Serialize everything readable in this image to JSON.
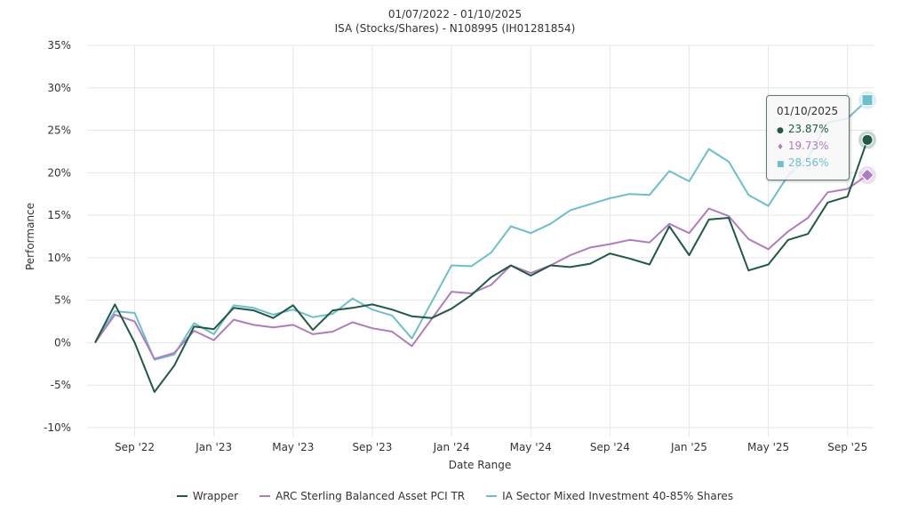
{
  "header": {
    "date_range": "01/07/2022 - 01/10/2025",
    "account": "ISA (Stocks/Shares) - N108995 (IH01281854)"
  },
  "chart_data": {
    "type": "line",
    "title": "01/07/2022 - 01/10/2025",
    "subtitle": "ISA (Stocks/Shares) - N108995 (IH01281854)",
    "xlabel": "Date Range",
    "ylabel": "Performance",
    "ylim": [
      -10,
      35
    ],
    "grid": true,
    "legend_position": "bottom",
    "y_ticks": [
      -10,
      -5,
      0,
      5,
      10,
      15,
      20,
      25,
      30,
      35
    ],
    "y_tick_labels": [
      "-10%",
      "-5%",
      "0%",
      "5%",
      "10%",
      "15%",
      "20%",
      "25%",
      "30%",
      "35%"
    ],
    "x_ticks": [
      {
        "label": "Sep '22",
        "index": 2
      },
      {
        "label": "Jan '23",
        "index": 6
      },
      {
        "label": "May '23",
        "index": 10
      },
      {
        "label": "Sep '23",
        "index": 14
      },
      {
        "label": "Jan '24",
        "index": 18
      },
      {
        "label": "May '24",
        "index": 22
      },
      {
        "label": "Sep '24",
        "index": 26
      },
      {
        "label": "Jan '25",
        "index": 30
      },
      {
        "label": "May '25",
        "index": 34
      },
      {
        "label": "Sep '25",
        "index": 38
      }
    ],
    "x": [
      "Jul 22",
      "Aug 22",
      "Sep 22",
      "Oct 22",
      "Nov 22",
      "Dec 22",
      "Jan 23",
      "Feb 23",
      "Mar 23",
      "Apr 23",
      "May 23",
      "Jun 23",
      "Jul 23",
      "Aug 23",
      "Sep 23",
      "Oct 23",
      "Nov 23",
      "Dec 23",
      "Jan 24",
      "Feb 24",
      "Mar 24",
      "Apr 24",
      "May 24",
      "Jun 24",
      "Jul 24",
      "Aug 24",
      "Sep 24",
      "Oct 24",
      "Nov 24",
      "Dec 24",
      "Jan 25",
      "Feb 25",
      "Mar 25",
      "Apr 25",
      "May 25",
      "Jun 25",
      "Jul 25",
      "Aug 25",
      "Sep 25",
      "Oct 25"
    ],
    "series": [
      {
        "name": "Wrapper",
        "color": "#1f5a42",
        "marker": "circle",
        "values": [
          0,
          4.5,
          0,
          -5.8,
          -2.7,
          1.9,
          1.6,
          4.1,
          3.8,
          2.9,
          4.4,
          1.5,
          3.8,
          4.1,
          4.5,
          3.9,
          3.1,
          2.9,
          4.0,
          5.6,
          7.7,
          9.1,
          7.9,
          9.1,
          8.9,
          9.3,
          10.5,
          9.9,
          9.2,
          13.7,
          10.3,
          14.5,
          14.7,
          8.5,
          9.2,
          12.1,
          12.8,
          16.5,
          17.2,
          23.87
        ]
      },
      {
        "name": "ARC Sterling Balanced Asset PCI TR",
        "color": "#b07cc0",
        "marker": "diamond",
        "values": [
          0,
          3.3,
          2.5,
          -1.9,
          -1.2,
          1.4,
          0.3,
          2.7,
          2.1,
          1.8,
          2.1,
          1.0,
          1.3,
          2.4,
          1.7,
          1.3,
          -0.4,
          2.8,
          6.0,
          5.8,
          6.8,
          9.1,
          8.2,
          9.1,
          10.3,
          11.2,
          11.6,
          12.1,
          11.8,
          14.0,
          12.9,
          15.8,
          14.9,
          12.2,
          11.0,
          13.1,
          14.7,
          17.7,
          18.1,
          19.73
        ]
      },
      {
        "name": "IA Sector Mixed Investment 40-85% Shares",
        "color": "#6cbfcc",
        "marker": "square",
        "values": [
          0,
          3.7,
          3.5,
          -2.0,
          -1.4,
          2.3,
          1.0,
          4.4,
          4.1,
          3.3,
          3.9,
          3.0,
          3.4,
          5.2,
          3.9,
          3.2,
          0.5,
          4.8,
          9.1,
          9.0,
          10.6,
          13.7,
          12.9,
          14.0,
          15.6,
          16.3,
          17.0,
          17.5,
          17.4,
          20.2,
          19.0,
          22.8,
          21.3,
          17.4,
          16.1,
          19.7,
          21.8,
          25.9,
          26.4,
          28.56
        ]
      }
    ],
    "tooltip": {
      "date": "01/10/2025",
      "rows": [
        {
          "symbol": "●",
          "value": "23.87%",
          "color": "#1f5a42"
        },
        {
          "symbol": "♦",
          "value": "19.73%",
          "color": "#b07cc0"
        },
        {
          "symbol": "■",
          "value": "28.56%",
          "color": "#6cbfcc"
        }
      ]
    }
  }
}
